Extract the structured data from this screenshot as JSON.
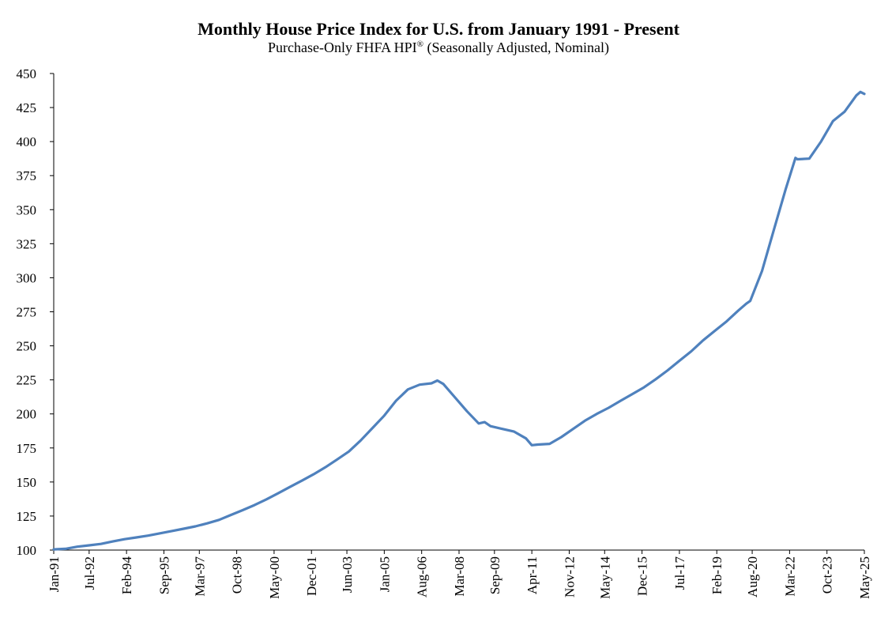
{
  "chart_data": {
    "type": "line",
    "title": "Monthly House Price Index for U.S. from January 1991 - Present",
    "subtitle": {
      "prefix": "Purchase-Only FHFA HPI",
      "superscript": "®",
      "suffix": " (Seasonally Adjusted, Nominal)"
    },
    "xlabel": "",
    "ylabel": "",
    "ylim": [
      100,
      450
    ],
    "y_ticks": [
      100,
      125,
      150,
      175,
      200,
      225,
      250,
      275,
      300,
      325,
      350,
      375,
      400,
      425,
      450
    ],
    "x_ticks": [
      "Jan-91",
      "Jul-92",
      "Feb-94",
      "Sep-95",
      "Mar-97",
      "Oct-98",
      "May-00",
      "Dec-01",
      "Jun-03",
      "Jan-05",
      "Aug-06",
      "Mar-08",
      "Sep-09",
      "Apr-11",
      "Nov-12",
      "May-14",
      "Dec-15",
      "Jul-17",
      "Feb-19",
      "Aug-20",
      "Mar-22",
      "Oct-23",
      "May-25"
    ],
    "grid": false,
    "legend": "none",
    "series": [
      {
        "color": "#4f81bd",
        "x": [
          "1991-01",
          "1991-07",
          "1992-01",
          "1992-07",
          "1993-01",
          "1993-07",
          "1994-01",
          "1994-07",
          "1995-01",
          "1995-07",
          "1996-01",
          "1996-07",
          "1997-01",
          "1997-07",
          "1998-01",
          "1998-07",
          "1999-01",
          "1999-07",
          "2000-01",
          "2000-07",
          "2001-01",
          "2001-07",
          "2002-01",
          "2002-07",
          "2003-01",
          "2003-07",
          "2004-01",
          "2004-07",
          "2005-01",
          "2005-07",
          "2006-01",
          "2006-07",
          "2007-01",
          "2007-04",
          "2007-07",
          "2008-01",
          "2008-07",
          "2009-01",
          "2009-04",
          "2009-07",
          "2010-01",
          "2010-07",
          "2011-01",
          "2011-04",
          "2011-07",
          "2012-01",
          "2012-07",
          "2013-01",
          "2013-07",
          "2014-01",
          "2014-07",
          "2015-01",
          "2015-07",
          "2016-01",
          "2016-07",
          "2017-01",
          "2017-07",
          "2018-01",
          "2018-07",
          "2019-01",
          "2019-07",
          "2020-01",
          "2020-05",
          "2020-07",
          "2021-01",
          "2021-07",
          "2022-01",
          "2022-06",
          "2022-07",
          "2023-01",
          "2023-07",
          "2024-01",
          "2024-07",
          "2025-01",
          "2025-03",
          "2025-05"
        ],
        "values": [
          100.5,
          100.9,
          102.5,
          103.5,
          104.5,
          106.3,
          108.0,
          109.3,
          110.6,
          112.3,
          114.0,
          115.7,
          117.4,
          119.6,
          122.2,
          125.8,
          129.3,
          133.0,
          137.2,
          141.7,
          146.3,
          150.9,
          155.6,
          160.8,
          166.5,
          172.4,
          180.5,
          189.6,
          198.8,
          209.7,
          218.0,
          221.5,
          222.5,
          224.5,
          222.0,
          212.0,
          202.0,
          193.0,
          194.0,
          191.0,
          189.0,
          187.0,
          182.0,
          177.0,
          177.5,
          178.0,
          183.0,
          189.0,
          195.0,
          200.0,
          204.5,
          209.5,
          214.5,
          219.5,
          225.5,
          232.0,
          239.0,
          246.0,
          254.0,
          261.0,
          268.0,
          276.0,
          281.0,
          283.0,
          305.0,
          335.0,
          365.0,
          388.0,
          387.0,
          387.5,
          400.0,
          415.0,
          422.0,
          434.0,
          436.5,
          435.0
        ]
      }
    ]
  }
}
